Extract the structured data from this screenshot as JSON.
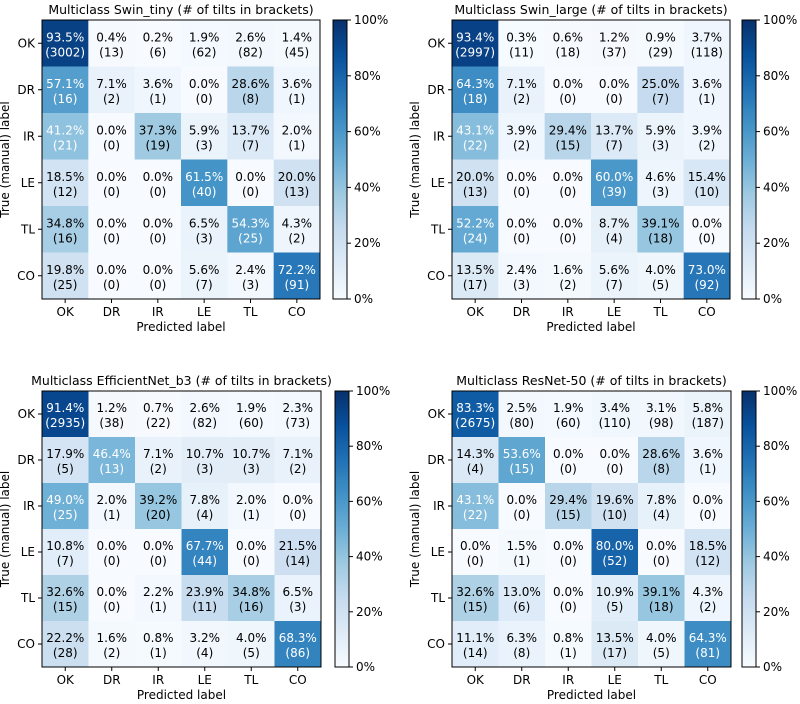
{
  "colorbar_ticks": [
    "0%",
    "20%",
    "40%",
    "60%",
    "80%",
    "100%"
  ],
  "chart_data": [
    {
      "type": "heatmap",
      "title": "Multiclass Swin_tiny (# of tilts in brackets)",
      "xlabel": "Predicted label",
      "ylabel": "True (manual) label",
      "categories": [
        "OK",
        "DR",
        "IR",
        "LE",
        "TL",
        "CO"
      ],
      "percent": [
        [
          "93.5%",
          "0.4%",
          "0.2%",
          "1.9%",
          "2.6%",
          "1.4%"
        ],
        [
          "57.1%",
          "7.1%",
          "3.6%",
          "0.0%",
          "28.6%",
          "3.6%"
        ],
        [
          "41.2%",
          "0.0%",
          "37.3%",
          "5.9%",
          "13.7%",
          "2.0%"
        ],
        [
          "18.5%",
          "0.0%",
          "0.0%",
          "61.5%",
          "0.0%",
          "20.0%"
        ],
        [
          "34.8%",
          "0.0%",
          "0.0%",
          "6.5%",
          "54.3%",
          "4.3%"
        ],
        [
          "19.8%",
          "0.0%",
          "0.0%",
          "5.6%",
          "2.4%",
          "72.2%"
        ]
      ],
      "counts": [
        [
          "(3002)",
          "(13)",
          "(6)",
          "(62)",
          "(82)",
          "(45)"
        ],
        [
          "(16)",
          "(2)",
          "(1)",
          "(0)",
          "(8)",
          "(1)"
        ],
        [
          "(21)",
          "(0)",
          "(19)",
          "(3)",
          "(7)",
          "(1)"
        ],
        [
          "(12)",
          "(0)",
          "(0)",
          "(40)",
          "(0)",
          "(13)"
        ],
        [
          "(16)",
          "(0)",
          "(0)",
          "(3)",
          "(25)",
          "(2)"
        ],
        [
          "(25)",
          "(0)",
          "(0)",
          "(7)",
          "(3)",
          "(91)"
        ]
      ],
      "colorbar_range": [
        0,
        100
      ]
    },
    {
      "type": "heatmap",
      "title": "Multiclass Swin_large (# of tilts in brackets)",
      "xlabel": "Predicted label",
      "ylabel": "True (manual) label",
      "categories": [
        "OK",
        "DR",
        "IR",
        "LE",
        "TL",
        "CO"
      ],
      "percent": [
        [
          "93.4%",
          "0.3%",
          "0.6%",
          "1.2%",
          "0.9%",
          "3.7%"
        ],
        [
          "64.3%",
          "7.1%",
          "0.0%",
          "0.0%",
          "25.0%",
          "3.6%"
        ],
        [
          "43.1%",
          "3.9%",
          "29.4%",
          "13.7%",
          "5.9%",
          "3.9%"
        ],
        [
          "20.0%",
          "0.0%",
          "0.0%",
          "60.0%",
          "4.6%",
          "15.4%"
        ],
        [
          "52.2%",
          "0.0%",
          "0.0%",
          "8.7%",
          "39.1%",
          "0.0%"
        ],
        [
          "13.5%",
          "2.4%",
          "1.6%",
          "5.6%",
          "4.0%",
          "73.0%"
        ]
      ],
      "counts": [
        [
          "(2997)",
          "(11)",
          "(18)",
          "(37)",
          "(29)",
          "(118)"
        ],
        [
          "(18)",
          "(2)",
          "(0)",
          "(0)",
          "(7)",
          "(1)"
        ],
        [
          "(22)",
          "(2)",
          "(15)",
          "(7)",
          "(3)",
          "(2)"
        ],
        [
          "(13)",
          "(0)",
          "(0)",
          "(39)",
          "(3)",
          "(10)"
        ],
        [
          "(24)",
          "(0)",
          "(0)",
          "(4)",
          "(18)",
          "(0)"
        ],
        [
          "(17)",
          "(3)",
          "(2)",
          "(7)",
          "(5)",
          "(92)"
        ]
      ],
      "colorbar_range": [
        0,
        100
      ]
    },
    {
      "type": "heatmap",
      "title": "Multiclass EfficientNet_b3 (# of tilts in brackets)",
      "xlabel": "Predicted label",
      "ylabel": "True (manual) label",
      "categories": [
        "OK",
        "DR",
        "IR",
        "LE",
        "TL",
        "CO"
      ],
      "percent": [
        [
          "91.4%",
          "1.2%",
          "0.7%",
          "2.6%",
          "1.9%",
          "2.3%"
        ],
        [
          "17.9%",
          "46.4%",
          "7.1%",
          "10.7%",
          "10.7%",
          "7.1%"
        ],
        [
          "49.0%",
          "2.0%",
          "39.2%",
          "7.8%",
          "2.0%",
          "0.0%"
        ],
        [
          "10.8%",
          "0.0%",
          "0.0%",
          "67.7%",
          "0.0%",
          "21.5%"
        ],
        [
          "32.6%",
          "0.0%",
          "2.2%",
          "23.9%",
          "34.8%",
          "6.5%"
        ],
        [
          "22.2%",
          "1.6%",
          "0.8%",
          "3.2%",
          "4.0%",
          "68.3%"
        ]
      ],
      "counts": [
        [
          "(2935)",
          "(38)",
          "(22)",
          "(82)",
          "(60)",
          "(73)"
        ],
        [
          "(5)",
          "(13)",
          "(2)",
          "(3)",
          "(3)",
          "(2)"
        ],
        [
          "(25)",
          "(1)",
          "(20)",
          "(4)",
          "(1)",
          "(0)"
        ],
        [
          "(7)",
          "(0)",
          "(0)",
          "(44)",
          "(0)",
          "(14)"
        ],
        [
          "(15)",
          "(0)",
          "(1)",
          "(11)",
          "(16)",
          "(3)"
        ],
        [
          "(28)",
          "(2)",
          "(1)",
          "(4)",
          "(5)",
          "(86)"
        ]
      ],
      "colorbar_range": [
        0,
        100
      ]
    },
    {
      "type": "heatmap",
      "title": "Multiclass ResNet-50 (# of tilts in brackets)",
      "xlabel": "Predicted label",
      "ylabel": "True (manual) label",
      "categories": [
        "OK",
        "DR",
        "IR",
        "LE",
        "TL",
        "CO"
      ],
      "percent": [
        [
          "83.3%",
          "2.5%",
          "1.9%",
          "3.4%",
          "3.1%",
          "5.8%"
        ],
        [
          "14.3%",
          "53.6%",
          "0.0%",
          "0.0%",
          "28.6%",
          "3.6%"
        ],
        [
          "43.1%",
          "0.0%",
          "29.4%",
          "19.6%",
          "7.8%",
          "0.0%"
        ],
        [
          "0.0%",
          "1.5%",
          "0.0%",
          "80.0%",
          "0.0%",
          "18.5%"
        ],
        [
          "32.6%",
          "13.0%",
          "0.0%",
          "10.9%",
          "39.1%",
          "4.3%"
        ],
        [
          "11.1%",
          "6.3%",
          "0.8%",
          "13.5%",
          "4.0%",
          "64.3%"
        ]
      ],
      "counts": [
        [
          "(2675)",
          "(80)",
          "(60)",
          "(110)",
          "(98)",
          "(187)"
        ],
        [
          "(4)",
          "(15)",
          "(0)",
          "(0)",
          "(8)",
          "(1)"
        ],
        [
          "(22)",
          "(0)",
          "(15)",
          "(10)",
          "(4)",
          "(0)"
        ],
        [
          "(0)",
          "(1)",
          "(0)",
          "(52)",
          "(0)",
          "(12)"
        ],
        [
          "(15)",
          "(6)",
          "(0)",
          "(5)",
          "(18)",
          "(2)"
        ],
        [
          "(14)",
          "(8)",
          "(1)",
          "(17)",
          "(5)",
          "(81)"
        ]
      ],
      "colorbar_range": [
        0,
        100
      ]
    }
  ]
}
